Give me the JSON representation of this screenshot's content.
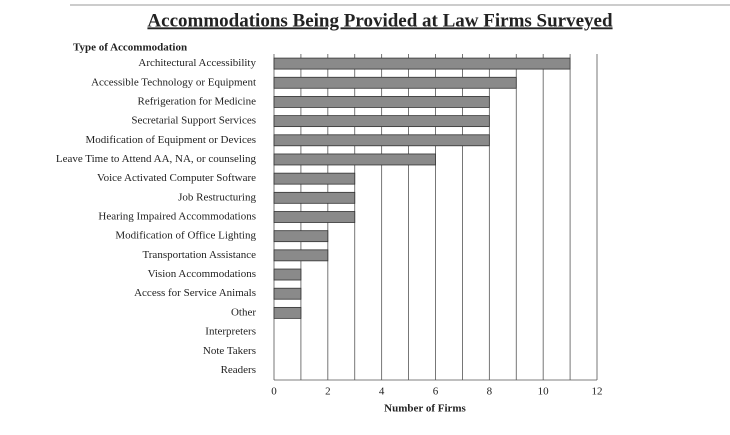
{
  "chart_data": {
    "type": "bar",
    "orientation": "horizontal",
    "title": "Accommodations Being Provided at Law Firms Surveyed",
    "y_axis_label": "Type of Accommodation",
    "x_axis_label": "Number of Firms",
    "categories": [
      "Architectural Accessibility",
      "Accessible Technology or Equipment",
      "Refrigeration for Medicine",
      "Secretarial Support Services",
      "Modification of Equipment or Devices",
      "Leave Time to Attend AA, NA, or counseling",
      "Voice Activated Computer Software",
      "Job Restructuring",
      "Hearing Impaired Accommodations",
      "Modification of Office Lighting",
      "Transportation Assistance",
      "Vision Accommodations",
      "Access for Service Animals",
      "Other",
      "Interpreters",
      "Note Takers",
      "Readers"
    ],
    "values": [
      11,
      9,
      8,
      8,
      8,
      6,
      3,
      3,
      3,
      2,
      2,
      1,
      1,
      1,
      0,
      0,
      0
    ],
    "color": "#8a8a8a",
    "xlim": [
      0,
      12
    ],
    "xticks": [
      0,
      2,
      4,
      6,
      8,
      10,
      12
    ],
    "minor_xticks": [
      1,
      3,
      5,
      7,
      9,
      11
    ],
    "grid": true
  }
}
